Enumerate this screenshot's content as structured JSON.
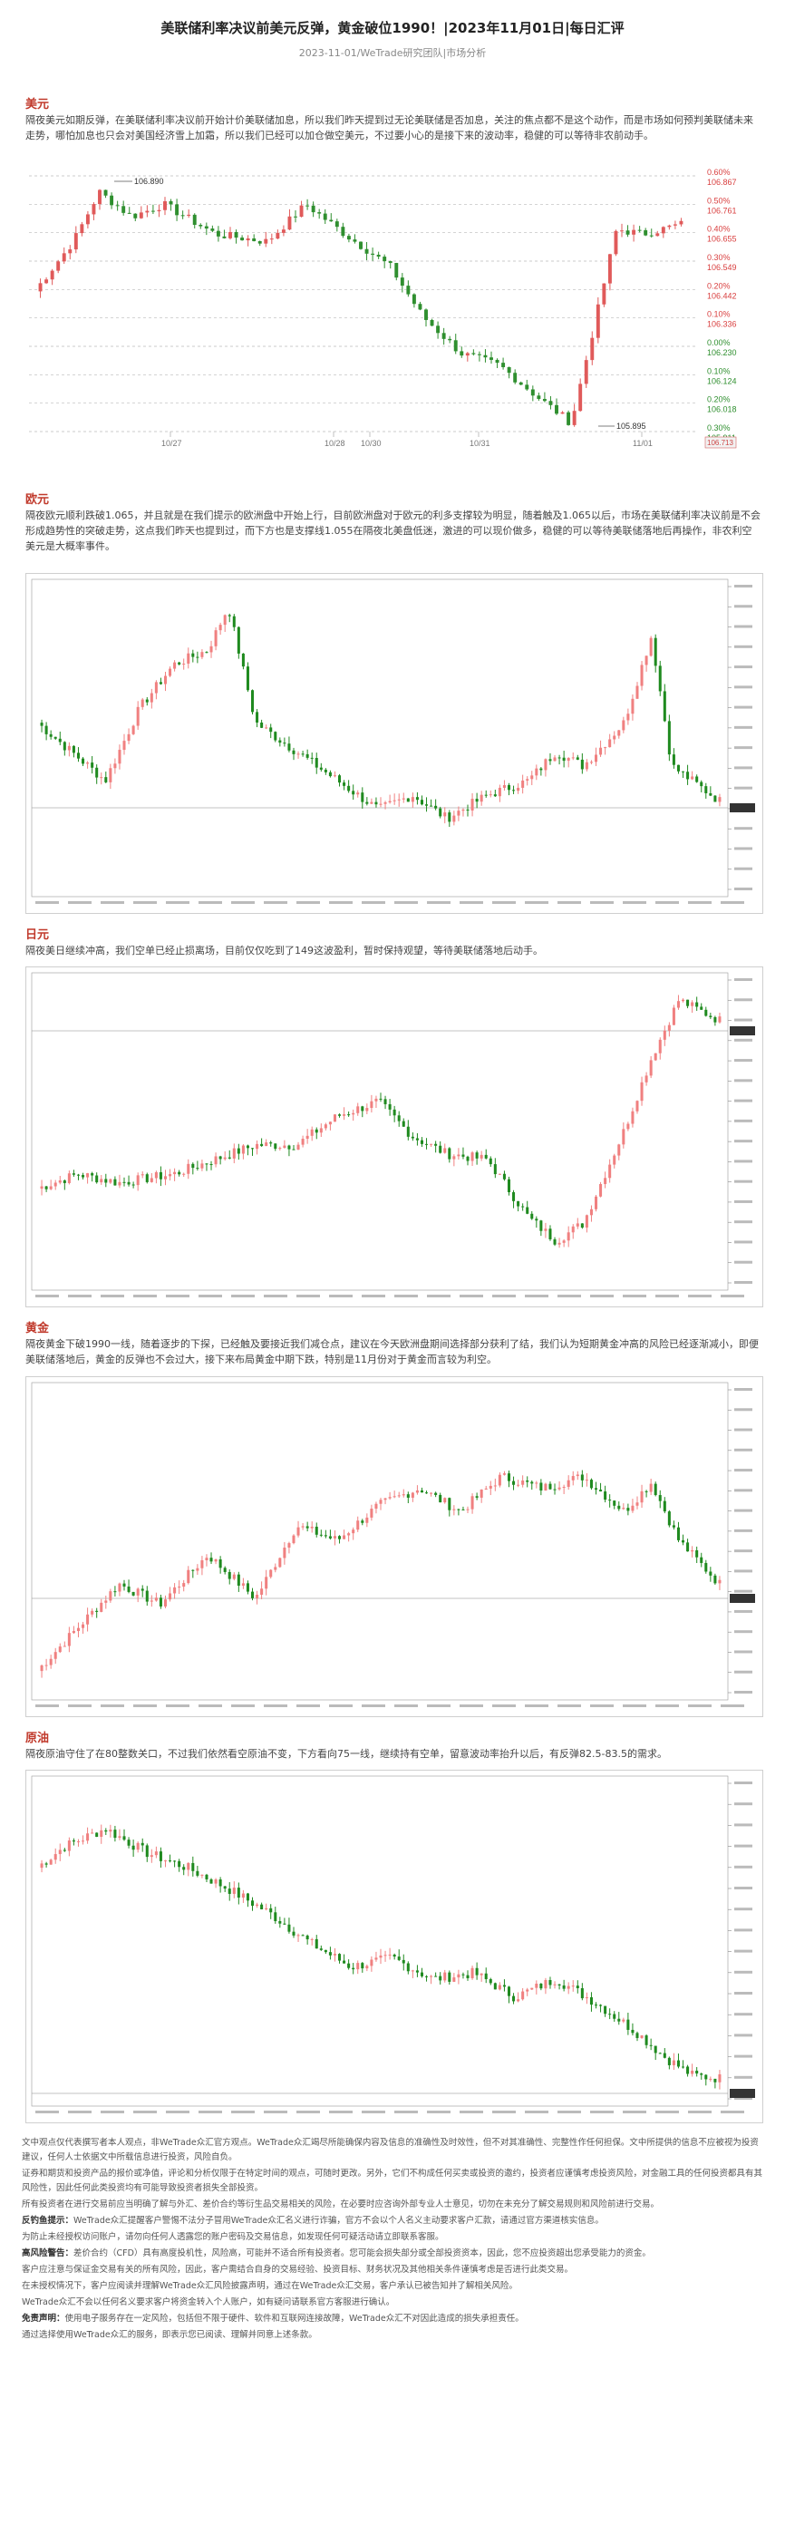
{
  "header": {
    "title": "美联储利率决议前美元反弹，黄金破位1990！|2023年11月01日|每日汇评",
    "subtitle": "2023-11-01/WeTrade研究团队|市场分析"
  },
  "sections": [
    {
      "title": "美元",
      "text": "隔夜美元如期反弹，在美联储利率决议前开始计价美联储加息，所以我们昨天提到过无论美联储是否加息，关注的焦点都不是这个动作，而是市场如何预判美联储未来走势，哪怕加息也只会对美国经济雪上加霜，所以我们已经可以加仓做空美元，不过要小心的是接下来的波动率，稳健的可以等待非农前动手。"
    },
    {
      "title": "欧元",
      "text": "隔夜欧元顺利跌破1.065，并且就是在我们提示的欧洲盘中开始上行，目前欧洲盘对于欧元的利多支撑较为明显，随着触及1.065以后，市场在美联储利率决议前是不会形成趋势性的突破走势，这点我们昨天也提到过，而下方也是支撑线1.055在隔夜北美盘低迷，激进的可以现价做多，稳健的可以等待美联储落地后再操作，非农利空美元是大概率事件。"
    },
    {
      "title": "日元",
      "text": "隔夜美日继续冲高，我们空单已经止损离场，目前仅仅吃到了149这波盈利，暂时保持观望，等待美联储落地后动手。"
    },
    {
      "title": "黄金",
      "text": "隔夜黄金下破1990一线，随着逐步的下探，已经触及要接近我们减仓点，建议在今天欧洲盘期间选择部分获利了结，我们认为短期黄金冲高的风险已经逐渐减小，即便美联储落地后，黄金的反弹也不会过大，接下来布局黄金中期下跌，特别是11月份对于黄金而言较为利空。"
    },
    {
      "title": "原油",
      "text": "隔夜原油守住了在80整数关口，不过我们依然看空原油不变，下方看向75一线，继续持有空单，留意波动率抬升以后，有反弹82.5-83.5的需求。"
    }
  ],
  "dxy_chart": {
    "high_label": "106.890",
    "low_label": "105.895",
    "date_labels": [
      "10/27",
      "10/28",
      "10/30",
      "10/31",
      "11/01"
    ],
    "scale": [
      {
        "pct": "0.60%",
        "price": "106.867"
      },
      {
        "pct": "0.50%",
        "price": "106.761"
      },
      {
        "pct": "0.40%",
        "price": "106.655"
      },
      {
        "pct": "0.30%",
        "price": "106.549"
      },
      {
        "pct": "0.20%",
        "price": "106.442"
      },
      {
        "pct": "0.10%",
        "price": "106.336"
      },
      {
        "pct": "0.00%",
        "price": "106.230"
      },
      {
        "pct": "0.10%",
        "price": "106.124"
      },
      {
        "pct": "0.20%",
        "price": "106.018"
      },
      {
        "pct": "0.30%",
        "price": "105.911"
      }
    ],
    "last_tag": "106.713",
    "up_color": "#e05a5a",
    "down_color": "#2f8f2f"
  },
  "disclaimer": [
    {
      "head": "",
      "text": "文中观点仅代表撰写者本人观点，非WeTrade众汇官方观点。WeTrade众汇竭尽所能确保内容及信息的准确性及时效性，但不对其准确性、完整性作任何担保。文中所提供的信息不应被视为投资建议，任何人士依据文中所载信息进行投资，风险自负。"
    },
    {
      "head": "",
      "text": "证券和期货和投资产品的报价或净值，评论和分析仅限于在特定时间的观点，可随时更改。另外，它们不构成任何买卖或投资的邀约，投资者应谨慎考虑投资风险，对金融工具的任何投资都具有其风险性，因此任何此类投资均有可能导致投资者损失全部投资。"
    },
    {
      "head": "",
      "text": "所有投资者在进行交易前应当明确了解与外汇、差价合约等衍生品交易相关的风险，在必要时应咨询外部专业人士意见，切勿在未充分了解交易规则和风险前进行交易。"
    },
    {
      "head": "反钓鱼提示：",
      "text": "WeTrade众汇提醒客户警惕不法分子冒用WeTrade众汇名义进行诈骗，官方不会以个人名义主动要求客户汇款，请通过官方渠道核实信息。"
    },
    {
      "head": "",
      "text": "为防止未经授权访问账户，请勿向任何人透露您的账户密码及交易信息，如发现任何可疑活动请立即联系客服。"
    },
    {
      "head": "高风险警告：",
      "text": "差价合约（CFD）具有高度投机性，风险高，可能并不适合所有投资者。您可能会损失部分或全部投资资本，因此，您不应投资超出您承受能力的资金。"
    },
    {
      "head": "",
      "text": "客户应注意与保证金交易有关的所有风险，因此，客户需结合自身的交易经验、投资目标、财务状况及其他相关条件谨慎考虑是否进行此类交易。"
    },
    {
      "head": "",
      "text": "在未授权情况下，客户应阅读并理解WeTrade众汇风险披露声明，通过在WeTrade众汇交易，客户承认已被告知并了解相关风险。"
    },
    {
      "head": "",
      "text": "WeTrade众汇不会以任何名义要求客户将资金转入个人账户，如有疑问请联系官方客服进行确认。"
    },
    {
      "head": "免责声明：",
      "text": "使用电子服务存在一定风险，包括但不限于硬件、软件和互联网连接故障，WeTrade众汇不对因此造成的损失承担责任。"
    },
    {
      "head": "",
      "text": "通过选择使用WeTrade众汇的服务，即表示您已阅读、理解并同意上述条款。"
    }
  ]
}
